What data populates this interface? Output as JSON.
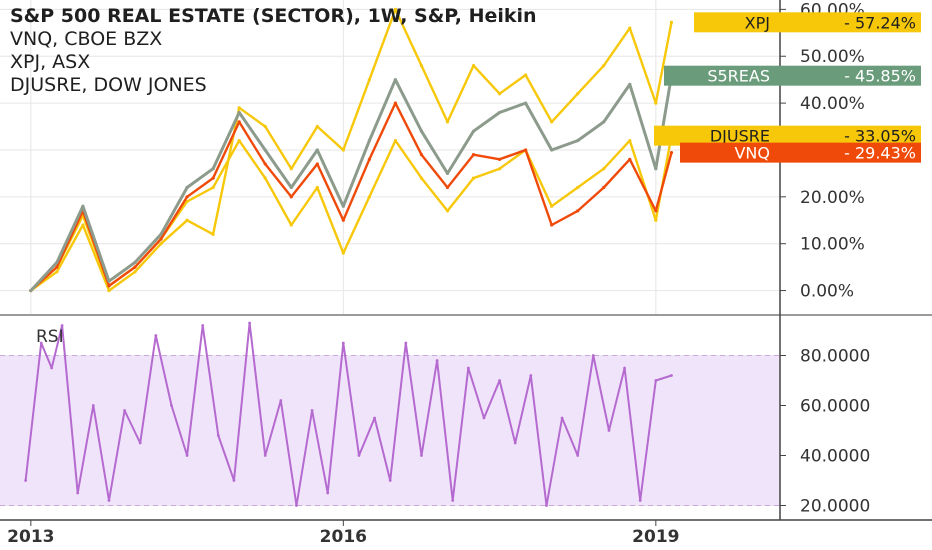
{
  "legend": {
    "title": "S&P 500 REAL ESTATE (SECTOR), 1W, S&P, Heikin",
    "lines": [
      "VNQ, CBOE BZX",
      "XPJ, ASX",
      "DJUSRE, DOW JONES"
    ]
  },
  "colors": {
    "main_series": "#8c9b8c",
    "vnq": "#f04a0a",
    "xpj": "#f7c80a",
    "djusre": "#f7c80a",
    "s5reas_tag": "#6a9c7b",
    "rsi_line": "#b56ad0",
    "rsi_band": "#f0e4fa",
    "rsi_band_line": "#c9a8e0",
    "grid": "#e6e6e6",
    "axis_text": "#333333"
  },
  "chart_data": [
    {
      "type": "line",
      "title": "S&P 500 REAL ESTATE (SECTOR), 1W, S&P, Heikin",
      "xlabel": "",
      "ylabel": "",
      "ylim": [
        -5,
        62
      ],
      "x_ticks": [
        "2013",
        "2016",
        "2019"
      ],
      "y_ticks": [
        "0.00%",
        "10.00%",
        "20.00%",
        "30.00%",
        "40.00%",
        "50.00%",
        "60.00%"
      ],
      "x": [
        2013.0,
        2013.25,
        2013.5,
        2013.75,
        2014.0,
        2014.25,
        2014.5,
        2014.75,
        2015.0,
        2015.25,
        2015.5,
        2015.75,
        2016.0,
        2016.25,
        2016.5,
        2016.75,
        2017.0,
        2017.25,
        2017.5,
        2017.75,
        2018.0,
        2018.25,
        2018.5,
        2018.75,
        2019.0,
        2019.15
      ],
      "series": [
        {
          "name": "S5REAS",
          "values": [
            0,
            6,
            18,
            2,
            6,
            12,
            22,
            26,
            38,
            30,
            22,
            30,
            18,
            32,
            45,
            34,
            25,
            34,
            38,
            40,
            30,
            32,
            36,
            44,
            26,
            45.85
          ]
        },
        {
          "name": "VNQ",
          "values": [
            0,
            5,
            17,
            1,
            5,
            11,
            20,
            24,
            36,
            27,
            20,
            27,
            15,
            28,
            40,
            29,
            22,
            29,
            28,
            30,
            14,
            17,
            22,
            28,
            17,
            29.43
          ]
        },
        {
          "name": "XPJ",
          "values": [
            0,
            4,
            14,
            0,
            4,
            10,
            15,
            12,
            39,
            35,
            26,
            35,
            30,
            45,
            60,
            48,
            36,
            48,
            42,
            46,
            36,
            42,
            48,
            56,
            40,
            57.24
          ]
        },
        {
          "name": "DJUSRE",
          "values": [
            0,
            5,
            16,
            1,
            5,
            11,
            19,
            22,
            32,
            24,
            14,
            22,
            8,
            20,
            32,
            24,
            17,
            24,
            26,
            30,
            18,
            22,
            26,
            32,
            15,
            33.05
          ]
        }
      ],
      "last_values": [
        {
          "label": "XPJ",
          "value": "57.24%"
        },
        {
          "label": "S5REAS",
          "value": "45.85%"
        },
        {
          "label": "DJUSRE",
          "value": "33.05%"
        },
        {
          "label": "VNQ",
          "value": "29.43%"
        }
      ]
    },
    {
      "type": "line",
      "title": "RSI",
      "xlabel": "",
      "ylabel": "",
      "ylim": [
        15,
        95
      ],
      "y_ticks": [
        "20.0000",
        "40.0000",
        "60.0000",
        "80.0000"
      ],
      "band": [
        20,
        80
      ],
      "x": [
        2012.95,
        2013.1,
        2013.2,
        2013.3,
        2013.45,
        2013.6,
        2013.75,
        2013.9,
        2014.05,
        2014.2,
        2014.35,
        2014.5,
        2014.65,
        2014.8,
        2014.95,
        2015.1,
        2015.25,
        2015.4,
        2015.55,
        2015.7,
        2015.85,
        2016.0,
        2016.15,
        2016.3,
        2016.45,
        2016.6,
        2016.75,
        2016.9,
        2017.05,
        2017.2,
        2017.35,
        2017.5,
        2017.65,
        2017.8,
        2017.95,
        2018.1,
        2018.25,
        2018.4,
        2018.55,
        2018.7,
        2018.85,
        2019.0,
        2019.15
      ],
      "series": [
        {
          "name": "",
          "values": [
            30,
            85,
            75,
            92,
            25,
            60,
            22,
            58,
            45,
            88,
            60,
            40,
            92,
            48,
            30,
            93,
            40,
            62,
            20,
            58,
            25,
            85,
            40,
            55,
            30,
            85,
            40,
            78,
            22,
            75,
            55,
            70,
            45,
            72,
            20,
            55,
            40,
            80,
            50,
            75,
            22,
            70,
            72
          ]
        }
      ]
    }
  ],
  "rsi_label": "RSI",
  "time_labels": [
    "2013",
    "2016",
    "2019"
  ]
}
